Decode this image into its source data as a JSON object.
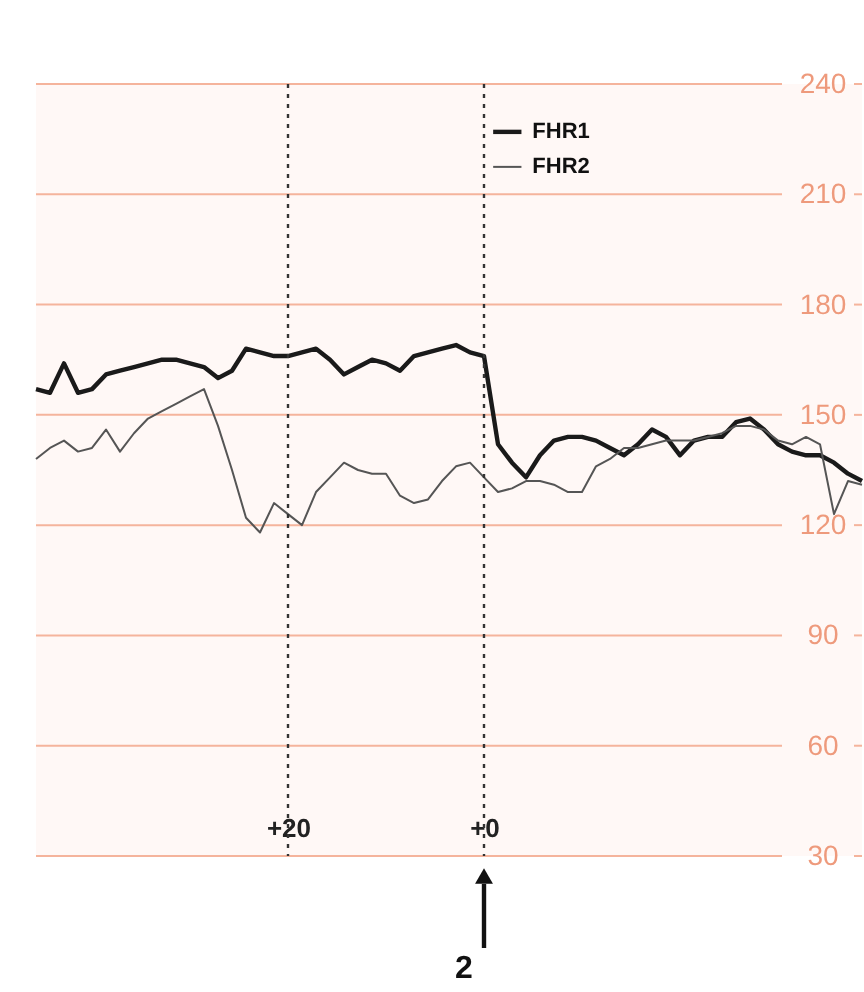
{
  "chart_data": {
    "type": "line",
    "categories": [
      null,
      null,
      null,
      null,
      null,
      null,
      null,
      null,
      null,
      null,
      null,
      null,
      null,
      null,
      null,
      null,
      null,
      null,
      "+20",
      null,
      null,
      null,
      null,
      null,
      null,
      null,
      null,
      null,
      null,
      null,
      null,
      null,
      "+0",
      null,
      null,
      null,
      null,
      null,
      null,
      null,
      null,
      null,
      null,
      null,
      null,
      null,
      null,
      null,
      null,
      null,
      null,
      null,
      null,
      null,
      null,
      null,
      null,
      null,
      null,
      null
    ],
    "ylim": [
      30,
      240
    ],
    "yticks": [
      30,
      60,
      90,
      120,
      150,
      180,
      210,
      240
    ],
    "grid": "y",
    "legend": "top",
    "marker": "none",
    "line_style": "solid",
    "series": [
      {
        "name": "FHR1",
        "color": "#1a1a1a",
        "values": [
          157,
          156,
          164,
          156,
          157,
          161,
          162,
          163,
          164,
          165,
          165,
          164,
          163,
          160,
          162,
          168,
          167,
          166,
          166,
          167,
          168,
          165,
          161,
          163,
          165,
          164,
          162,
          166,
          167,
          168,
          169,
          167,
          166,
          142,
          137,
          133,
          139,
          143,
          144,
          144,
          143,
          141,
          139,
          142,
          146,
          144,
          139,
          143,
          144,
          144,
          148,
          149,
          146,
          142,
          140,
          139,
          139,
          137,
          134,
          132
        ]
      },
      {
        "name": "FHR2",
        "color": "#555555",
        "values": [
          138,
          141,
          143,
          140,
          141,
          146,
          140,
          145,
          149,
          151,
          153,
          155,
          157,
          147,
          135,
          122,
          118,
          126,
          123,
          120,
          129,
          133,
          137,
          135,
          134,
          134,
          128,
          126,
          127,
          132,
          136,
          137,
          133,
          129,
          130,
          132,
          132,
          131,
          129,
          129,
          136,
          138,
          141,
          141,
          142,
          143,
          143,
          143,
          144,
          145,
          147,
          147,
          146,
          143,
          142,
          144,
          142,
          123,
          132,
          131
        ]
      }
    ],
    "ref_lines": [
      {
        "axis": "x",
        "value": "+20",
        "line_style": "dotted",
        "color": "#333333"
      },
      {
        "axis": "x",
        "value": "+0",
        "line_style": "dotted",
        "color": "#333333"
      }
    ],
    "annotations": [
      "2"
    ]
  }
}
